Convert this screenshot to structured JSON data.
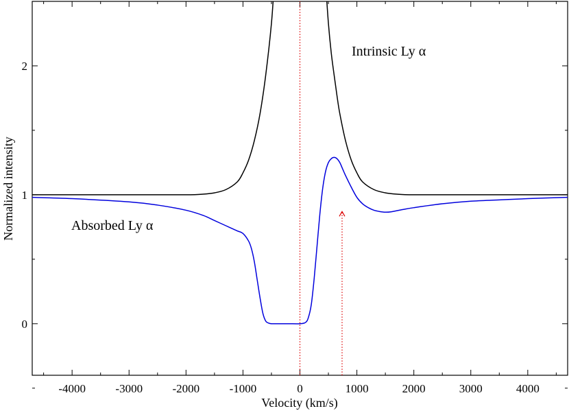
{
  "chart_data": {
    "type": "line",
    "xlabel": "Velocity (km/s)",
    "ylabel": "Normalized intensity",
    "xlim": [
      -4700,
      4700
    ],
    "ylim": [
      -0.4,
      2.5
    ],
    "x_ticks": [
      -4000,
      -3000,
      -2000,
      -1000,
      0,
      1000,
      2000,
      3000,
      4000
    ],
    "x_tick_labels": [
      "-4000",
      "-3000",
      "-2000",
      "-1000",
      "0",
      "1000",
      "2000",
      "3000",
      "4000"
    ],
    "y_ticks": [
      0,
      1,
      2
    ],
    "y_tick_labels": [
      "0",
      "1",
      "2"
    ],
    "grid": false,
    "colors": {
      "intrinsic": "#000000",
      "absorbed": "#0000dd",
      "marker": "#dd0000"
    },
    "series": [
      {
        "name": "Intrinsic Ly α",
        "x": [
          -4700,
          -3000,
          -2000,
          -1700,
          -1500,
          -1300,
          -1100,
          -1000,
          -900,
          -800,
          -700,
          -600,
          -500,
          -450,
          -400,
          -350,
          350,
          400,
          450,
          500,
          550,
          600,
          650,
          700,
          800,
          900,
          1000,
          1100,
          1300,
          1500,
          1700,
          2000,
          3000,
          4700
        ],
        "y": [
          1.0,
          1.0,
          1.0,
          1.005,
          1.015,
          1.04,
          1.1,
          1.17,
          1.27,
          1.42,
          1.63,
          1.93,
          2.33,
          2.65,
          3.0,
          3.5,
          3.5,
          3.0,
          2.65,
          2.33,
          2.1,
          1.93,
          1.77,
          1.63,
          1.42,
          1.27,
          1.17,
          1.1,
          1.04,
          1.015,
          1.005,
          1.0,
          1.0,
          1.0
        ]
      },
      {
        "name": "Absorbed Ly α",
        "x": [
          -4700,
          -4000,
          -3000,
          -2500,
          -2000,
          -1700,
          -1500,
          -1300,
          -1100,
          -1000,
          -900,
          -850,
          -800,
          -750,
          -700,
          -650,
          -600,
          -550,
          -500,
          -450,
          -400,
          -200,
          0,
          100,
          150,
          200,
          250,
          300,
          350,
          400,
          450,
          500,
          550,
          600,
          650,
          700,
          750,
          800,
          900,
          1000,
          1100,
          1200,
          1300,
          1400,
          1500,
          1600,
          1800,
          2000,
          2500,
          3000,
          3500,
          4000,
          4700
        ],
        "y": [
          0.98,
          0.97,
          0.945,
          0.92,
          0.88,
          0.84,
          0.8,
          0.76,
          0.72,
          0.7,
          0.64,
          0.58,
          0.48,
          0.34,
          0.2,
          0.08,
          0.02,
          0.005,
          0.0,
          0.0,
          0.0,
          0.0,
          0.0,
          0.01,
          0.05,
          0.15,
          0.35,
          0.6,
          0.85,
          1.05,
          1.18,
          1.25,
          1.28,
          1.29,
          1.28,
          1.25,
          1.2,
          1.15,
          1.06,
          0.98,
          0.93,
          0.9,
          0.88,
          0.87,
          0.865,
          0.868,
          0.885,
          0.9,
          0.93,
          0.95,
          0.96,
          0.97,
          0.98
        ]
      }
    ],
    "annotations": [
      {
        "text": "Intrinsic Ly α"
      },
      {
        "text": "Absorbed Ly α"
      }
    ],
    "markers": [
      {
        "type": "vline",
        "x": 0,
        "from_y": -0.4,
        "to_y": 2.5
      },
      {
        "type": "arrow",
        "x": 740,
        "from_y": -0.4,
        "to_y": 0.87
      }
    ]
  }
}
